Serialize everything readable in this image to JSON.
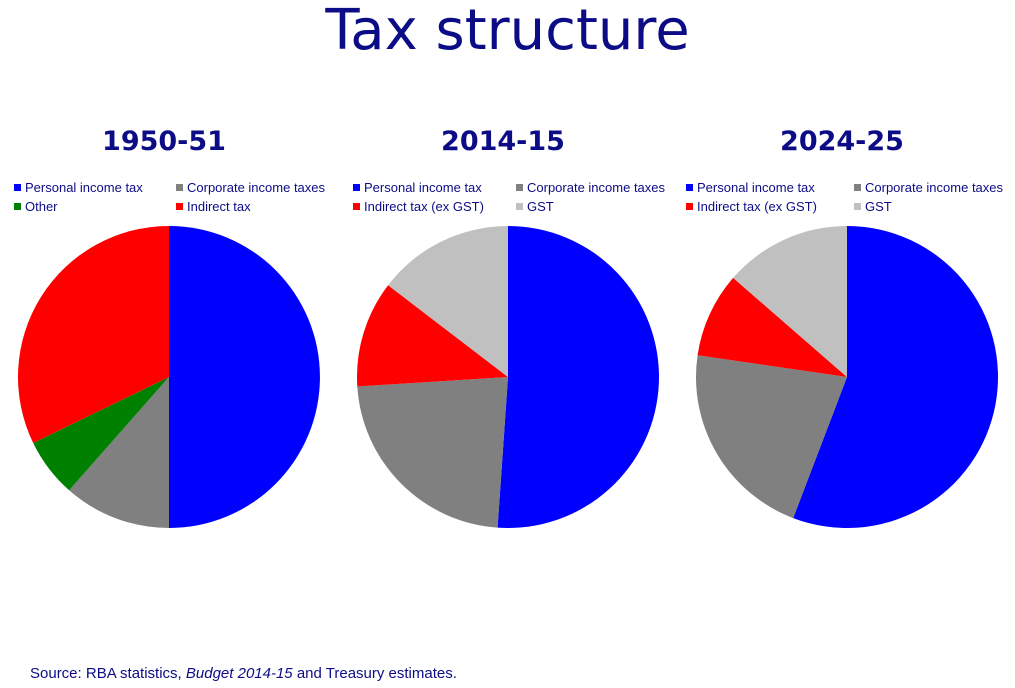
{
  "title": "Tax structure",
  "source": {
    "prefix": "Source: RBA statistics, ",
    "italic": "Budget 2014-15",
    "suffix": " and Treasury estimates."
  },
  "colors": {
    "text": "#0c0c86",
    "personal": "#0000ff",
    "corporate": "#808080",
    "other": "#008000",
    "indirect": "#ff0000",
    "gst": "#c0c0c0"
  },
  "chart_data": [
    {
      "type": "pie",
      "title": "1950-51",
      "legend": [
        {
          "label": "Personal income tax",
          "color": "#0000ff"
        },
        {
          "label": "Corporate income taxes",
          "color": "#808080"
        },
        {
          "label": "Other",
          "color": "#008000"
        },
        {
          "label": "Indirect tax",
          "color": "#ff0000"
        }
      ],
      "slices": [
        {
          "label": "Personal income tax",
          "value": 50.0,
          "color": "#0000ff"
        },
        {
          "label": "Corporate income taxes",
          "value": 11.5,
          "color": "#808080"
        },
        {
          "label": "Other",
          "value": 6.3,
          "color": "#008000"
        },
        {
          "label": "Indirect tax",
          "value": 32.2,
          "color": "#ff0000"
        }
      ]
    },
    {
      "type": "pie",
      "title": "2014-15",
      "legend": [
        {
          "label": "Personal income tax",
          "color": "#0000ff"
        },
        {
          "label": "Corporate income taxes",
          "color": "#808080"
        },
        {
          "label": "Indirect tax (ex GST)",
          "color": "#ff0000"
        },
        {
          "label": "GST",
          "color": "#c0c0c0"
        }
      ],
      "slices": [
        {
          "label": "Personal income tax",
          "value": 51.1,
          "color": "#0000ff"
        },
        {
          "label": "Corporate income taxes",
          "value": 22.9,
          "color": "#808080"
        },
        {
          "label": "Indirect tax (ex GST)",
          "value": 11.4,
          "color": "#ff0000"
        },
        {
          "label": "GST",
          "value": 14.6,
          "color": "#c0c0c0"
        }
      ]
    },
    {
      "type": "pie",
      "title": "2024-25",
      "legend": [
        {
          "label": "Personal income tax",
          "color": "#0000ff"
        },
        {
          "label": "Corporate income taxes",
          "color": "#808080"
        },
        {
          "label": "Indirect tax (ex GST)",
          "color": "#ff0000"
        },
        {
          "label": "GST",
          "color": "#c0c0c0"
        }
      ],
      "slices": [
        {
          "label": "Personal income tax",
          "value": 55.8,
          "color": "#0000ff"
        },
        {
          "label": "Corporate income taxes",
          "value": 21.5,
          "color": "#808080"
        },
        {
          "label": "Indirect tax (ex GST)",
          "value": 9.1,
          "color": "#ff0000"
        },
        {
          "label": "GST",
          "value": 13.6,
          "color": "#c0c0c0"
        }
      ]
    }
  ]
}
